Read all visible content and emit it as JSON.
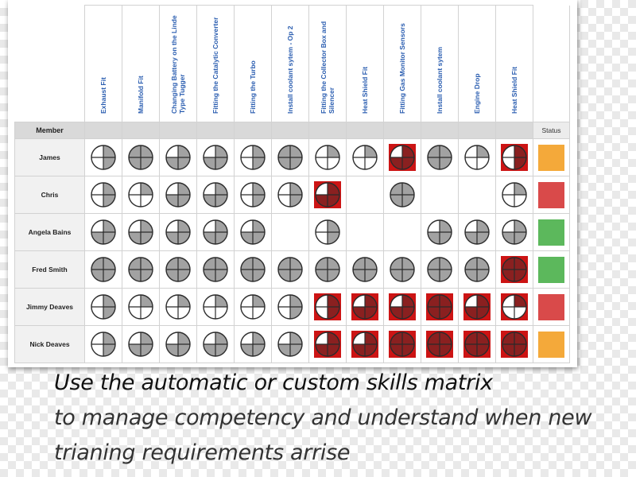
{
  "matrix": {
    "skills": [
      "Exhaust Fit",
      "Manifold Fit",
      "Changing Battery on the Linde Type Tugger",
      "Fitting the Catalytic Converter",
      "Fitting the Turbo",
      "Install coolant sytem - Op 2",
      "Fitting the Collector Box and Silencer",
      "Heat Shield Fit",
      "Fitting Gas Monitor Sensors",
      "Install coolant sytem",
      "Engine Drop",
      "Heat Shield Fit"
    ],
    "member_header": "Member",
    "status_header": "Status",
    "rows": [
      {
        "name": "James",
        "levels": [
          2,
          4,
          3,
          3,
          2,
          4,
          1,
          1,
          3,
          4,
          1,
          2
        ],
        "flagged": [
          false,
          false,
          false,
          false,
          false,
          false,
          false,
          false,
          true,
          false,
          false,
          true
        ],
        "status": "#f4a93a"
      },
      {
        "name": "Chris",
        "levels": [
          2,
          1,
          3,
          3,
          2,
          2,
          3,
          null,
          4,
          null,
          null,
          1
        ],
        "flagged": [
          false,
          false,
          false,
          false,
          false,
          false,
          true,
          false,
          false,
          false,
          false,
          false
        ],
        "status": "#d94a4a"
      },
      {
        "name": "Angela Bains",
        "levels": [
          3,
          3,
          3,
          3,
          3,
          null,
          2,
          null,
          null,
          3,
          3,
          3
        ],
        "flagged": [
          false,
          false,
          false,
          false,
          false,
          false,
          false,
          false,
          false,
          false,
          false,
          false
        ],
        "status": "#5cb85c"
      },
      {
        "name": "Fred Smith",
        "levels": [
          4,
          4,
          4,
          4,
          4,
          4,
          4,
          4,
          4,
          4,
          4,
          4
        ],
        "flagged": [
          false,
          false,
          false,
          false,
          false,
          false,
          false,
          false,
          false,
          false,
          false,
          true
        ],
        "status": "#5cb85c"
      },
      {
        "name": "Jimmy Deaves",
        "levels": [
          2,
          1,
          1,
          1,
          1,
          2,
          2,
          3,
          3,
          4,
          3,
          1
        ],
        "flagged": [
          false,
          false,
          false,
          false,
          false,
          false,
          true,
          true,
          true,
          true,
          true,
          true
        ],
        "status": "#d94a4a"
      },
      {
        "name": "Nick Deaves",
        "levels": [
          2,
          3,
          3,
          3,
          3,
          3,
          3,
          3,
          4,
          4,
          4,
          4
        ],
        "flagged": [
          false,
          false,
          false,
          false,
          false,
          false,
          true,
          true,
          true,
          true,
          true,
          true
        ],
        "status": "#f4a93a"
      }
    ]
  },
  "colors": {
    "filled": "#a2a2a2",
    "flagged_fill": "#8a2020",
    "flagged_bg": "#cc1414",
    "header_text": "#2a5db0"
  },
  "caption": {
    "line1": "Use the automatic or custom skills matrix",
    "line2": "to manage competency and understand when new",
    "line3": "trianing requirements arrise"
  }
}
